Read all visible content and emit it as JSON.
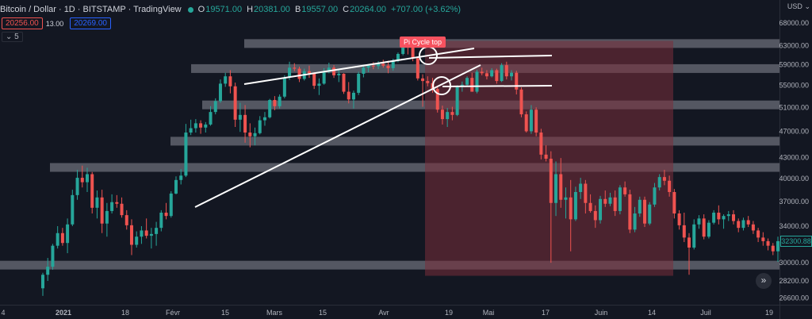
{
  "header": {
    "symbol": "Bitcoin / Dollar · 1D · BITSTAMP · TradingView",
    "o_label": "O",
    "o": "19571.00",
    "h_label": "H",
    "h": "20381.00",
    "b_label": "B",
    "b": "19557.00",
    "c_label": "C",
    "c": "20264.00",
    "change": "+707.00 (+3.62%)",
    "sell_price": "20256.00",
    "spread": "13.00",
    "buy_price": "20269.00",
    "indicator_count": "5"
  },
  "currency": "USD",
  "current_price_tag": "32300.88",
  "annotation": "Pi Cycle top",
  "colors": {
    "up": "#26a69a",
    "down": "#ef5350",
    "zone": "#7a2e3a",
    "band": "#9598a1",
    "label": "#f7525f"
  },
  "chart_data": {
    "type": "candlestick",
    "y_axis_scale": "log",
    "ylim": [
      26000,
      72000
    ],
    "y_ticks": [
      {
        "value": 68000,
        "label": "68000.00"
      },
      {
        "value": 63000,
        "label": "63000.00"
      },
      {
        "value": 59000,
        "label": "59000.00"
      },
      {
        "value": 55000,
        "label": "55000.00"
      },
      {
        "value": 51000,
        "label": "51000.00"
      },
      {
        "value": 47000,
        "label": "47000.00"
      },
      {
        "value": 43000,
        "label": "43000.00"
      },
      {
        "value": 40000,
        "label": "40000.00"
      },
      {
        "value": 37000,
        "label": "37000.00"
      },
      {
        "value": 34000,
        "label": "34000.00"
      },
      {
        "value": 30000,
        "label": "30000.00"
      },
      {
        "value": 28200,
        "label": "28200.00"
      },
      {
        "value": 26600,
        "label": "26600.00"
      }
    ],
    "x_ticks": [
      "4",
      "2021",
      "18",
      "Févr",
      "15",
      "Mars",
      "15",
      "Avr",
      "19",
      "Mai",
      "17",
      "Juin",
      "14",
      "Juil",
      "19"
    ],
    "candles": [
      [
        27500,
        29000,
        26800,
        28800
      ],
      [
        28800,
        30500,
        28200,
        29600
      ],
      [
        29600,
        32000,
        29300,
        31800
      ],
      [
        31800,
        34000,
        31500,
        33200
      ],
      [
        33200,
        33800,
        31800,
        32100
      ],
      [
        32100,
        34900,
        31000,
        34200
      ],
      [
        34200,
        38500,
        34000,
        37800
      ],
      [
        37800,
        41200,
        37200,
        40100
      ],
      [
        40100,
        41800,
        38800,
        39500
      ],
      [
        39500,
        41500,
        38200,
        40600
      ],
      [
        40600,
        40900,
        35500,
        36200
      ],
      [
        36200,
        38400,
        34900,
        37500
      ],
      [
        37500,
        38500,
        33200,
        34300
      ],
      [
        34300,
        36800,
        32800,
        35800
      ],
      [
        35800,
        37900,
        35500,
        36900
      ],
      [
        36900,
        37800,
        36200,
        36700
      ],
      [
        36700,
        37500,
        35000,
        35300
      ],
      [
        35300,
        35900,
        33600,
        34100
      ],
      [
        34100,
        34800,
        30800,
        31900
      ],
      [
        31900,
        33400,
        31600,
        32800
      ],
      [
        32800,
        34000,
        32000,
        33500
      ],
      [
        33500,
        34900,
        32600,
        32900
      ],
      [
        32900,
        33800,
        31500,
        33100
      ],
      [
        33100,
        34500,
        31800,
        33800
      ],
      [
        33800,
        35900,
        33400,
        35600
      ],
      [
        35600,
        36800,
        34800,
        35200
      ],
      [
        35200,
        38300,
        35000,
        38000
      ],
      [
        38000,
        40300,
        37900,
        39800
      ],
      [
        39800,
        41300,
        39200,
        40400
      ],
      [
        40400,
        48200,
        40200,
        46800
      ],
      [
        46800,
        48900,
        46400,
        47500
      ],
      [
        47500,
        49000,
        46800,
        48300
      ],
      [
        48300,
        48800,
        46600,
        47600
      ],
      [
        47600,
        48500,
        46800,
        48100
      ],
      [
        48100,
        51200,
        47900,
        50200
      ],
      [
        50200,
        52600,
        49800,
        52100
      ],
      [
        52100,
        56100,
        51800,
        55300
      ],
      [
        55300,
        57400,
        54700,
        56700
      ],
      [
        56700,
        57900,
        53500,
        54800
      ],
      [
        54800,
        55500,
        47700,
        48900
      ],
      [
        48900,
        51800,
        46900,
        49700
      ],
      [
        49700,
        51400,
        45200,
        46800
      ],
      [
        46800,
        48300,
        44500,
        46200
      ],
      [
        46200,
        47600,
        44800,
        46700
      ],
      [
        46700,
        49500,
        46500,
        48800
      ],
      [
        48800,
        50200,
        47900,
        49300
      ],
      [
        49300,
        52500,
        49100,
        52300
      ],
      [
        52300,
        53000,
        50500,
        51200
      ],
      [
        51200,
        53300,
        50800,
        52900
      ],
      [
        52900,
        56900,
        52600,
        56500
      ],
      [
        56500,
        59600,
        56000,
        58400
      ],
      [
        58400,
        59300,
        57700,
        58200
      ],
      [
        58200,
        58600,
        55600,
        56200
      ],
      [
        56200,
        58200,
        55900,
        57700
      ],
      [
        57700,
        58800,
        56400,
        57300
      ],
      [
        57300,
        57500,
        54300,
        54900
      ],
      [
        54900,
        56300,
        53200,
        55300
      ],
      [
        55300,
        58300,
        55100,
        57700
      ],
      [
        57700,
        59400,
        57300,
        58400
      ],
      [
        58400,
        58900,
        56400,
        56900
      ],
      [
        56900,
        57900,
        55600,
        57200
      ],
      [
        57200,
        57300,
        53400,
        53800
      ],
      [
        53800,
        55600,
        51700,
        52400
      ],
      [
        52400,
        54000,
        50800,
        53600
      ],
      [
        53600,
        57600,
        53200,
        57200
      ],
      [
        57200,
        58800,
        56500,
        58400
      ],
      [
        58400,
        59100,
        57500,
        58800
      ],
      [
        58800,
        59500,
        58100,
        58700
      ],
      [
        58700,
        59700,
        58100,
        59200
      ],
      [
        59200,
        60000,
        58400,
        58800
      ],
      [
        58800,
        59800,
        57300,
        58300
      ],
      [
        58300,
        60200,
        57800,
        59800
      ],
      [
        59800,
        61500,
        59500,
        61200
      ],
      [
        61200,
        64800,
        60900,
        63400
      ],
      [
        63400,
        64900,
        61100,
        62800
      ],
      [
        62800,
        63600,
        59700,
        60300
      ],
      [
        60300,
        60700,
        55900,
        56300
      ],
      [
        56300,
        57100,
        51100,
        55800
      ],
      [
        55800,
        56700,
        54800,
        55400
      ],
      [
        55400,
        56400,
        53600,
        54300
      ],
      [
        54300,
        54900,
        50100,
        50600
      ],
      [
        50600,
        51300,
        48100,
        49000
      ],
      [
        49000,
        50900,
        47700,
        50200
      ],
      [
        50200,
        51100,
        48800,
        49700
      ],
      [
        49700,
        55000,
        49500,
        54700
      ],
      [
        54700,
        55700,
        53800,
        55100
      ],
      [
        55100,
        56700,
        54900,
        56400
      ],
      [
        56400,
        57400,
        53800,
        53800
      ],
      [
        53800,
        58000,
        53500,
        57600
      ],
      [
        57600,
        58400,
        56900,
        57300
      ],
      [
        57300,
        57900,
        56100,
        56700
      ],
      [
        56700,
        58300,
        56500,
        57900
      ],
      [
        57900,
        58200,
        55300,
        55800
      ],
      [
        55800,
        59300,
        55600,
        58900
      ],
      [
        58900,
        59600,
        56100,
        56700
      ],
      [
        56700,
        57900,
        55900,
        57400
      ],
      [
        57400,
        57800,
        53300,
        54200
      ],
      [
        54200,
        54600,
        49300,
        49800
      ],
      [
        49800,
        50300,
        46800,
        47000
      ],
      [
        47000,
        51400,
        46600,
        50600
      ],
      [
        50600,
        51000,
        46200,
        46800
      ],
      [
        46800,
        47400,
        42700,
        43400
      ],
      [
        43400,
        44800,
        42400,
        42800
      ],
      [
        42800,
        43900,
        30000,
        36800
      ],
      [
        36800,
        42400,
        35200,
        40600
      ],
      [
        40600,
        42900,
        36200,
        37200
      ],
      [
        37200,
        38800,
        34900,
        37500
      ],
      [
        37500,
        39800,
        31200,
        34800
      ],
      [
        34800,
        38900,
        34600,
        38200
      ],
      [
        38200,
        40100,
        37300,
        39300
      ],
      [
        39300,
        39800,
        35500,
        36800
      ],
      [
        36800,
        37900,
        35600,
        35800
      ],
      [
        35800,
        36500,
        33800,
        34700
      ],
      [
        34700,
        37700,
        34300,
        37300
      ],
      [
        37300,
        38400,
        36300,
        36700
      ],
      [
        36700,
        38100,
        36400,
        37500
      ],
      [
        37500,
        38400,
        35200,
        35800
      ],
      [
        35800,
        39100,
        35400,
        38800
      ],
      [
        38800,
        39600,
        37600,
        37900
      ],
      [
        37900,
        38500,
        33200,
        33600
      ],
      [
        33600,
        36300,
        33300,
        35500
      ],
      [
        35500,
        37600,
        35100,
        37200
      ],
      [
        37200,
        37600,
        33900,
        34300
      ],
      [
        34300,
        36900,
        34100,
        36600
      ],
      [
        36600,
        39400,
        36300,
        38800
      ],
      [
        38800,
        40600,
        38400,
        40200
      ],
      [
        40200,
        41200,
        39100,
        39700
      ],
      [
        39700,
        40400,
        37600,
        38200
      ],
      [
        38200,
        38600,
        34900,
        35500
      ],
      [
        35500,
        35900,
        33600,
        34100
      ],
      [
        34100,
        35600,
        32200,
        32700
      ],
      [
        32700,
        33200,
        28800,
        31600
      ],
      [
        31600,
        34800,
        31400,
        34200
      ],
      [
        34200,
        35300,
        33700,
        34900
      ],
      [
        34900,
        35400,
        32500,
        32800
      ],
      [
        32800,
        34700,
        32600,
        34400
      ],
      [
        34400,
        35900,
        34200,
        35600
      ],
      [
        35600,
        36500,
        34200,
        34800
      ],
      [
        34800,
        35400,
        33700,
        35200
      ],
      [
        35200,
        35800,
        34600,
        35400
      ],
      [
        35400,
        35900,
        34200,
        34600
      ],
      [
        34600,
        34900,
        33300,
        33800
      ],
      [
        33800,
        35000,
        33500,
        34700
      ],
      [
        34700,
        35200,
        33900,
        34200
      ],
      [
        34200,
        34600,
        33100,
        33500
      ],
      [
        33500,
        33800,
        32200,
        32700
      ],
      [
        32700,
        33300,
        31800,
        32300
      ],
      [
        32300,
        32600,
        31300,
        31800
      ],
      [
        31800,
        32100,
        30800,
        31200
      ],
      [
        31200,
        32800,
        30100,
        32300
      ]
    ],
    "zones": [
      {
        "kind": "horizontal_band",
        "value": 63500
      },
      {
        "kind": "horizontal_band",
        "value": 58300
      },
      {
        "kind": "horizontal_band",
        "value": 51500
      },
      {
        "kind": "horizontal_band",
        "value": 45500
      },
      {
        "kind": "horizontal_band",
        "value": 41600
      },
      {
        "kind": "horizontal_band",
        "value": 29800
      }
    ]
  }
}
